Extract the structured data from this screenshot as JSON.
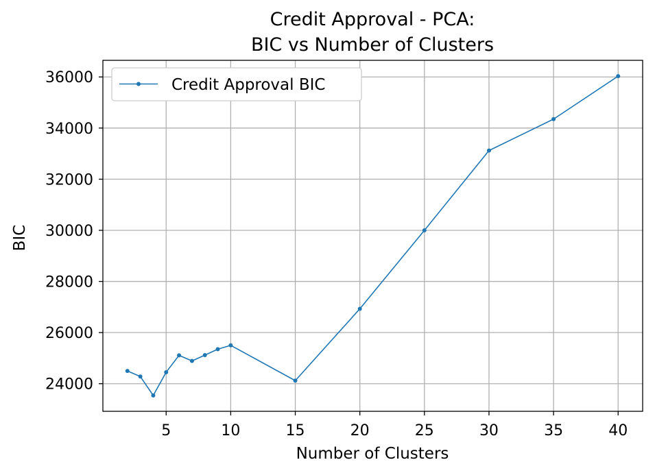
{
  "chart_data": {
    "type": "line",
    "title_lines": [
      "Credit Approval - PCA:",
      "BIC vs Number of Clusters"
    ],
    "xlabel": "Number of Clusters",
    "ylabel": "BIC",
    "x_ticks": [
      5,
      10,
      15,
      20,
      25,
      30,
      35,
      40
    ],
    "y_ticks": [
      24000,
      26000,
      28000,
      30000,
      32000,
      34000,
      36000
    ],
    "xlim": [
      0.1,
      41.9
    ],
    "ylim": [
      22920,
      36650
    ],
    "grid": true,
    "legend_position": "upper-left",
    "series": [
      {
        "name": "Credit Approval BIC",
        "color": "#1f77b4",
        "marker": "dot",
        "x": [
          2,
          3,
          4,
          5,
          6,
          7,
          8,
          9,
          10,
          15,
          20,
          25,
          30,
          35,
          40
        ],
        "y": [
          24500,
          24280,
          23540,
          24450,
          25110,
          24890,
          25120,
          25350,
          25500,
          24120,
          26930,
          30000,
          33120,
          34350,
          36030
        ]
      }
    ]
  }
}
